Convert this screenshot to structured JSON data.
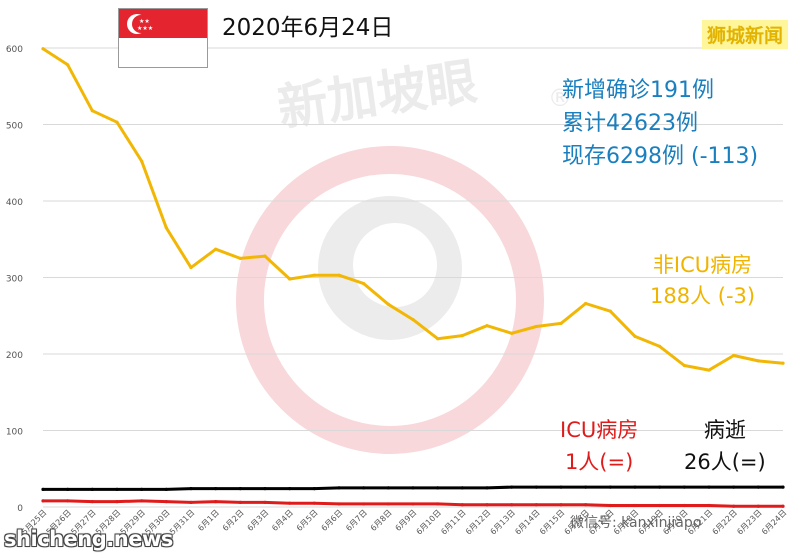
{
  "header": {
    "date": "2020年6月24日",
    "brand": "狮城新闻"
  },
  "stats": {
    "new_cases": "新增确诊191例",
    "total_cases": "累计42623例",
    "active_cases": "现存6298例 (-113)"
  },
  "labels": {
    "non_icu_title": "非ICU病房",
    "non_icu_value": "188人 (-3)",
    "icu_title": "ICU病房",
    "icu_value": "1人(=)",
    "deaths_title": "病逝",
    "deaths_value": "26人(=)"
  },
  "watermark": {
    "text": "新加坡眼",
    "mark": "®"
  },
  "footer": {
    "site": "shicheng.news",
    "wechat": "微信号: kanxinjiapo"
  },
  "colors": {
    "non_icu": "#f2b705",
    "icu": "#e01b1b",
    "deaths": "#000000",
    "grid": "#d9d9d9",
    "stats_text": "#1a7fbe",
    "flag_red": "#e4242e"
  },
  "chart_data": {
    "type": "line",
    "title": "",
    "xlabel": "",
    "ylabel": "",
    "ylim": [
      0,
      600
    ],
    "yticks": [
      0,
      100,
      200,
      300,
      400,
      500,
      600
    ],
    "grid": true,
    "categories": [
      "5月25日",
      "5月26日",
      "5月27日",
      "5月28日",
      "5月29日",
      "5月30日",
      "5月31日",
      "6月1日",
      "6月2日",
      "6月3日",
      "6月4日",
      "6月5日",
      "6月6日",
      "6月7日",
      "6月8日",
      "6月9日",
      "6月10日",
      "6月11日",
      "6月12日",
      "6月13日",
      "6月14日",
      "6月15日",
      "6月16日",
      "6月17日",
      "6月18日",
      "6月19日",
      "6月20日",
      "6月21日",
      "6月22日",
      "6月23日",
      "6月24日"
    ],
    "series": [
      {
        "name": "非ICU病房",
        "color": "#f2b705",
        "values": [
          599,
          578,
          518,
          503,
          452,
          365,
          313,
          337,
          325,
          328,
          298,
          303,
          303,
          292,
          265,
          245,
          220,
          224,
          237,
          227,
          236,
          240,
          266,
          256,
          223,
          210,
          185,
          179,
          198,
          191,
          188
        ]
      },
      {
        "name": "病逝",
        "color": "#000000",
        "values": [
          23,
          23,
          23,
          23,
          23,
          23,
          24,
          24,
          24,
          24,
          24,
          24,
          25,
          25,
          25,
          25,
          25,
          25,
          25,
          26,
          26,
          26,
          26,
          26,
          26,
          26,
          26,
          26,
          26,
          26,
          26
        ]
      },
      {
        "name": "ICU病房",
        "color": "#e01b1b",
        "values": [
          8,
          8,
          7,
          7,
          8,
          7,
          6,
          7,
          6,
          6,
          5,
          5,
          4,
          4,
          4,
          4,
          4,
          3,
          3,
          3,
          3,
          3,
          3,
          2,
          2,
          2,
          2,
          2,
          1,
          1,
          1
        ]
      }
    ]
  }
}
